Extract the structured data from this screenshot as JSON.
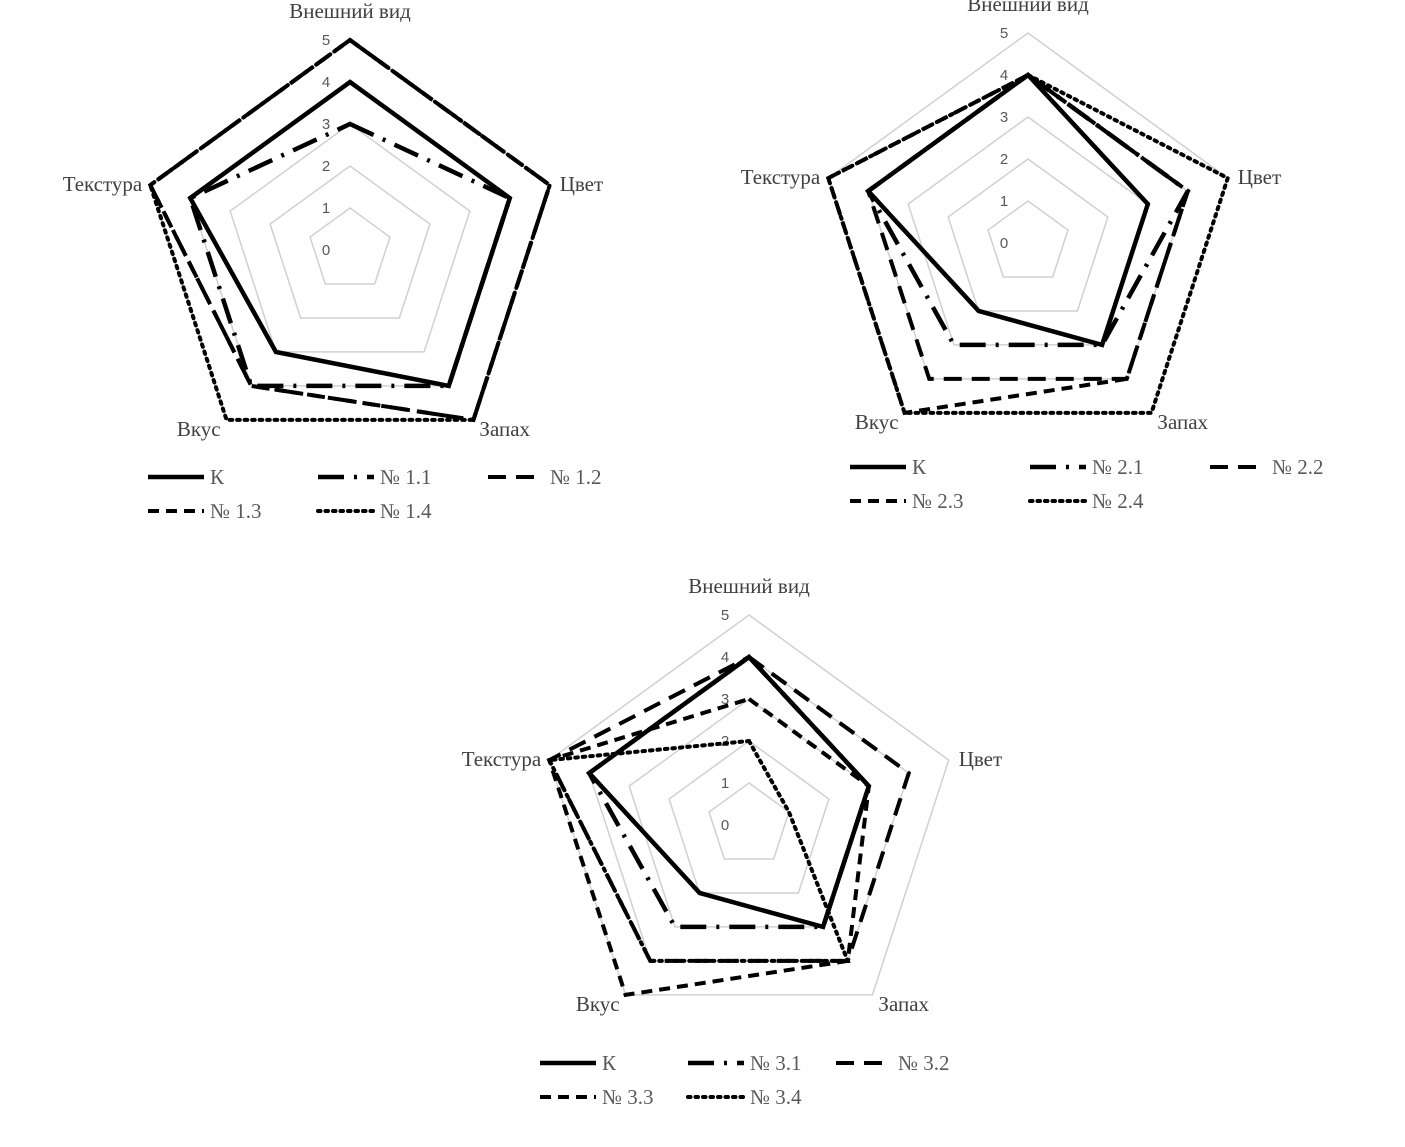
{
  "chart_data": [
    {
      "type": "radar",
      "categories": [
        "Внешний вид",
        "Цвет",
        "Запах",
        "Вкус",
        "Текстура"
      ],
      "rlim": [
        0,
        5
      ],
      "ticks": [
        "0",
        "1",
        "2",
        "3",
        "4",
        "5"
      ],
      "grid": true,
      "legend_position": "bottom",
      "series": [
        {
          "name": "К",
          "style": "solid",
          "values": [
            4,
            4,
            4,
            3,
            4
          ]
        },
        {
          "name": "№ 1.1",
          "style": "dashdot",
          "values": [
            3,
            4,
            4,
            4,
            4
          ]
        },
        {
          "name": "№ 1.2",
          "style": "dash",
          "values": [
            5,
            5,
            5,
            4,
            5
          ]
        },
        {
          "name": "№ 1.3",
          "style": "shortdash",
          "values": [
            5,
            5,
            5,
            4,
            5
          ]
        },
        {
          "name": "№ 1.4",
          "style": "dot",
          "values": [
            5,
            5,
            5,
            5,
            5
          ]
        }
      ]
    },
    {
      "type": "radar",
      "categories": [
        "Внешний вид",
        "Цвет",
        "Запах",
        "Вкус",
        "Текстура"
      ],
      "rlim": [
        0,
        5
      ],
      "ticks": [
        "0",
        "1",
        "2",
        "3",
        "4",
        "5"
      ],
      "grid": true,
      "legend_position": "bottom",
      "series": [
        {
          "name": "К",
          "style": "solid",
          "values": [
            4,
            3,
            3,
            2,
            4
          ]
        },
        {
          "name": "№ 2.1",
          "style": "dashdot",
          "values": [
            4,
            4,
            3,
            3,
            4
          ]
        },
        {
          "name": "№ 2.2",
          "style": "dash",
          "values": [
            4,
            4,
            4,
            4,
            4
          ]
        },
        {
          "name": "№ 2.3",
          "style": "shortdash",
          "values": [
            4,
            4,
            4,
            5,
            5
          ]
        },
        {
          "name": "№ 2.4",
          "style": "dot",
          "values": [
            4,
            5,
            5,
            5,
            5
          ]
        }
      ]
    },
    {
      "type": "radar",
      "categories": [
        "Внешний вид",
        "Цвет",
        "Запах",
        "Вкус",
        "Текстура"
      ],
      "rlim": [
        0,
        5
      ],
      "ticks": [
        "0",
        "1",
        "2",
        "3",
        "4",
        "5"
      ],
      "grid": true,
      "legend_position": "bottom",
      "series": [
        {
          "name": "К",
          "style": "solid",
          "values": [
            4,
            3,
            3,
            2,
            4
          ]
        },
        {
          "name": "№ 3.1",
          "style": "dashdot",
          "values": [
            4,
            3,
            3,
            3,
            4
          ]
        },
        {
          "name": "№ 3.2",
          "style": "dash",
          "values": [
            4,
            4,
            4,
            4,
            5
          ]
        },
        {
          "name": "№ 3.3",
          "style": "shortdash",
          "values": [
            3,
            3,
            4,
            5,
            5
          ]
        },
        {
          "name": "№ 3.4",
          "style": "dot",
          "values": [
            2,
            1,
            4,
            4,
            5
          ]
        }
      ]
    }
  ]
}
